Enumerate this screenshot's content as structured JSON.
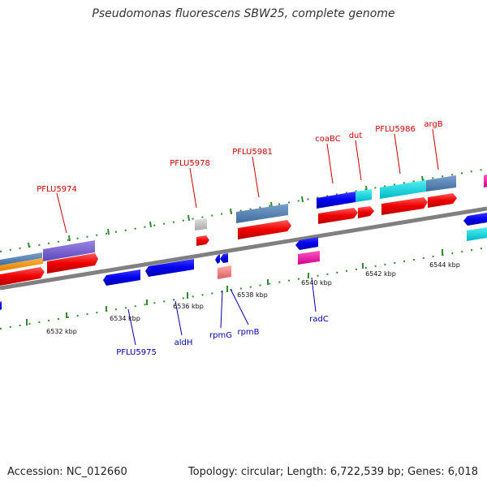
{
  "title": "Pseudomonas fluorescens SBW25, complete genome",
  "footer": {
    "accession": "Accession: NC_012660",
    "summary": "Topology: circular; Length: 6,722,539 bp; Genes: 6,018"
  },
  "colors": {
    "forward_label": "#cc0000",
    "reverse_label": "#0000aa",
    "axis": "#808080",
    "tick": "#2e8b2e"
  },
  "genes_forward": [
    {
      "label": "PFLU5974"
    },
    {
      "label": "PFLU5978"
    },
    {
      "label": "PFLU5981"
    },
    {
      "label": "coaBC"
    },
    {
      "label": "dut"
    },
    {
      "label": "PFLU5986"
    },
    {
      "label": "argB"
    }
  ],
  "genes_reverse": [
    {
      "label": "PFLU5975"
    },
    {
      "label": "aldH"
    },
    {
      "label": "rpmG"
    },
    {
      "label": "rpmB"
    },
    {
      "label": "radC"
    }
  ],
  "scale_labels": [
    "6532 kbp",
    "6534 kbp",
    "6536 kbp",
    "6538 kbp",
    "6540 kbp",
    "6542 kbp",
    "6544 kbp"
  ]
}
